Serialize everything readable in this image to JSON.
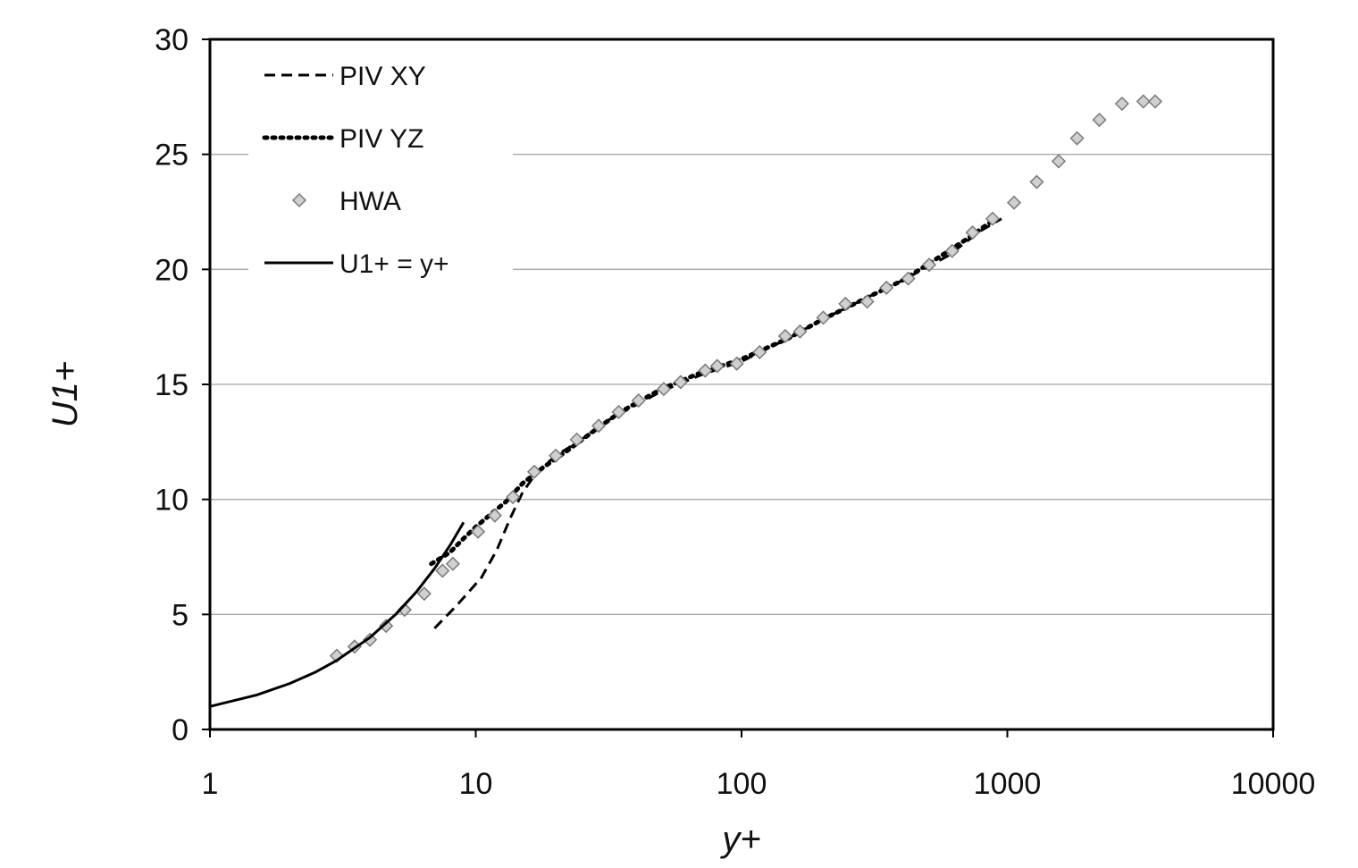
{
  "chart_data": {
    "type": "scatter",
    "xlabel": "y+",
    "ylabel": "U1+",
    "xscale": "log",
    "xlim": [
      1,
      10000
    ],
    "ylim": [
      0,
      30
    ],
    "x_ticks": [
      "1",
      "10",
      "100",
      "1000",
      "10000"
    ],
    "y_ticks": [
      "0",
      "5",
      "10",
      "15",
      "20",
      "25",
      "30"
    ],
    "grid": "horizontal major gridlines",
    "legend_position": "top-left",
    "colors": {
      "line": "#000000",
      "marker_fill": "#d0d0d0",
      "marker_stroke": "#7a7a7a",
      "grid": "#a8a8a8"
    },
    "series": [
      {
        "name": "PIV XY",
        "style": "dashed-line",
        "points": [
          [
            7.0,
            4.4
          ],
          [
            8.5,
            5.4
          ],
          [
            10.5,
            6.6
          ],
          [
            12.0,
            7.8
          ],
          [
            13.5,
            9.2
          ],
          [
            15.0,
            10.3
          ],
          [
            17.0,
            11.2
          ],
          [
            20.0,
            11.9
          ],
          [
            25.0,
            12.6
          ],
          [
            30.0,
            13.3
          ],
          [
            40.0,
            14.1
          ],
          [
            50.0,
            14.7
          ],
          [
            70.0,
            15.4
          ],
          [
            100.0,
            16.0
          ],
          [
            150.0,
            17.0
          ],
          [
            200.0,
            17.8
          ],
          [
            300.0,
            18.8
          ],
          [
            400.0,
            19.5
          ],
          [
            500.0,
            20.1
          ],
          [
            600.0,
            20.6
          ],
          [
            700.0,
            21.2
          ],
          [
            800.0,
            21.7
          ],
          [
            950.0,
            22.2
          ]
        ]
      },
      {
        "name": "PIV YZ",
        "style": "dotted-line",
        "points": [
          [
            6.8,
            7.2
          ],
          [
            8.0,
            7.7
          ],
          [
            9.0,
            8.3
          ],
          [
            10.0,
            8.8
          ],
          [
            11.5,
            9.4
          ],
          [
            13.0,
            9.9
          ],
          [
            15.0,
            10.7
          ],
          [
            18.0,
            11.4
          ],
          [
            22.0,
            12.1
          ],
          [
            28.0,
            13.0
          ],
          [
            35.0,
            13.8
          ],
          [
            50.0,
            14.8
          ],
          [
            70.0,
            15.5
          ],
          [
            100.0,
            16.1
          ],
          [
            150.0,
            17.0
          ],
          [
            200.0,
            17.8
          ],
          [
            300.0,
            18.8
          ],
          [
            400.0,
            19.5
          ],
          [
            500.0,
            20.2
          ],
          [
            700.0,
            21.3
          ],
          [
            900.0,
            22.2
          ]
        ]
      },
      {
        "name": "HWA",
        "style": "markers",
        "points": [
          [
            3.0,
            3.2
          ],
          [
            3.5,
            3.6
          ],
          [
            4.0,
            3.9
          ],
          [
            4.6,
            4.5
          ],
          [
            5.4,
            5.2
          ],
          [
            6.4,
            5.9
          ],
          [
            7.5,
            6.9
          ],
          [
            8.2,
            7.2
          ],
          [
            10.2,
            8.6
          ],
          [
            11.8,
            9.3
          ],
          [
            13.8,
            10.1
          ],
          [
            16.6,
            11.2
          ],
          [
            20.0,
            11.9
          ],
          [
            24.0,
            12.6
          ],
          [
            29.0,
            13.2
          ],
          [
            34.5,
            13.8
          ],
          [
            41.0,
            14.3
          ],
          [
            51.0,
            14.8
          ],
          [
            59.0,
            15.1
          ],
          [
            73.0,
            15.6
          ],
          [
            81.0,
            15.8
          ],
          [
            96.0,
            15.9
          ],
          [
            117.0,
            16.4
          ],
          [
            146.0,
            17.1
          ],
          [
            166.0,
            17.3
          ],
          [
            203.0,
            17.9
          ],
          [
            246.0,
            18.5
          ],
          [
            297.0,
            18.6
          ],
          [
            351.0,
            19.2
          ],
          [
            424.0,
            19.6
          ],
          [
            508.0,
            20.2
          ],
          [
            620.0,
            20.8
          ],
          [
            740.0,
            21.6
          ],
          [
            880.0,
            22.2
          ],
          [
            1060.0,
            22.9
          ],
          [
            1290.0,
            23.8
          ],
          [
            1560.0,
            24.7
          ],
          [
            1830.0,
            25.7
          ],
          [
            2220.0,
            26.5
          ],
          [
            2700.0,
            27.2
          ],
          [
            3250.0,
            27.3
          ],
          [
            3600.0,
            27.3
          ]
        ]
      },
      {
        "name": "U1+ = y+",
        "style": "solid-line",
        "points": [
          [
            1.0,
            1.0
          ],
          [
            1.5,
            1.5
          ],
          [
            2.0,
            2.0
          ],
          [
            2.5,
            2.5
          ],
          [
            3.0,
            3.0
          ],
          [
            4.0,
            4.0
          ],
          [
            5.0,
            5.0
          ],
          [
            6.0,
            6.0
          ],
          [
            7.0,
            7.0
          ],
          [
            8.0,
            8.0
          ],
          [
            9.0,
            9.0
          ]
        ]
      }
    ]
  }
}
